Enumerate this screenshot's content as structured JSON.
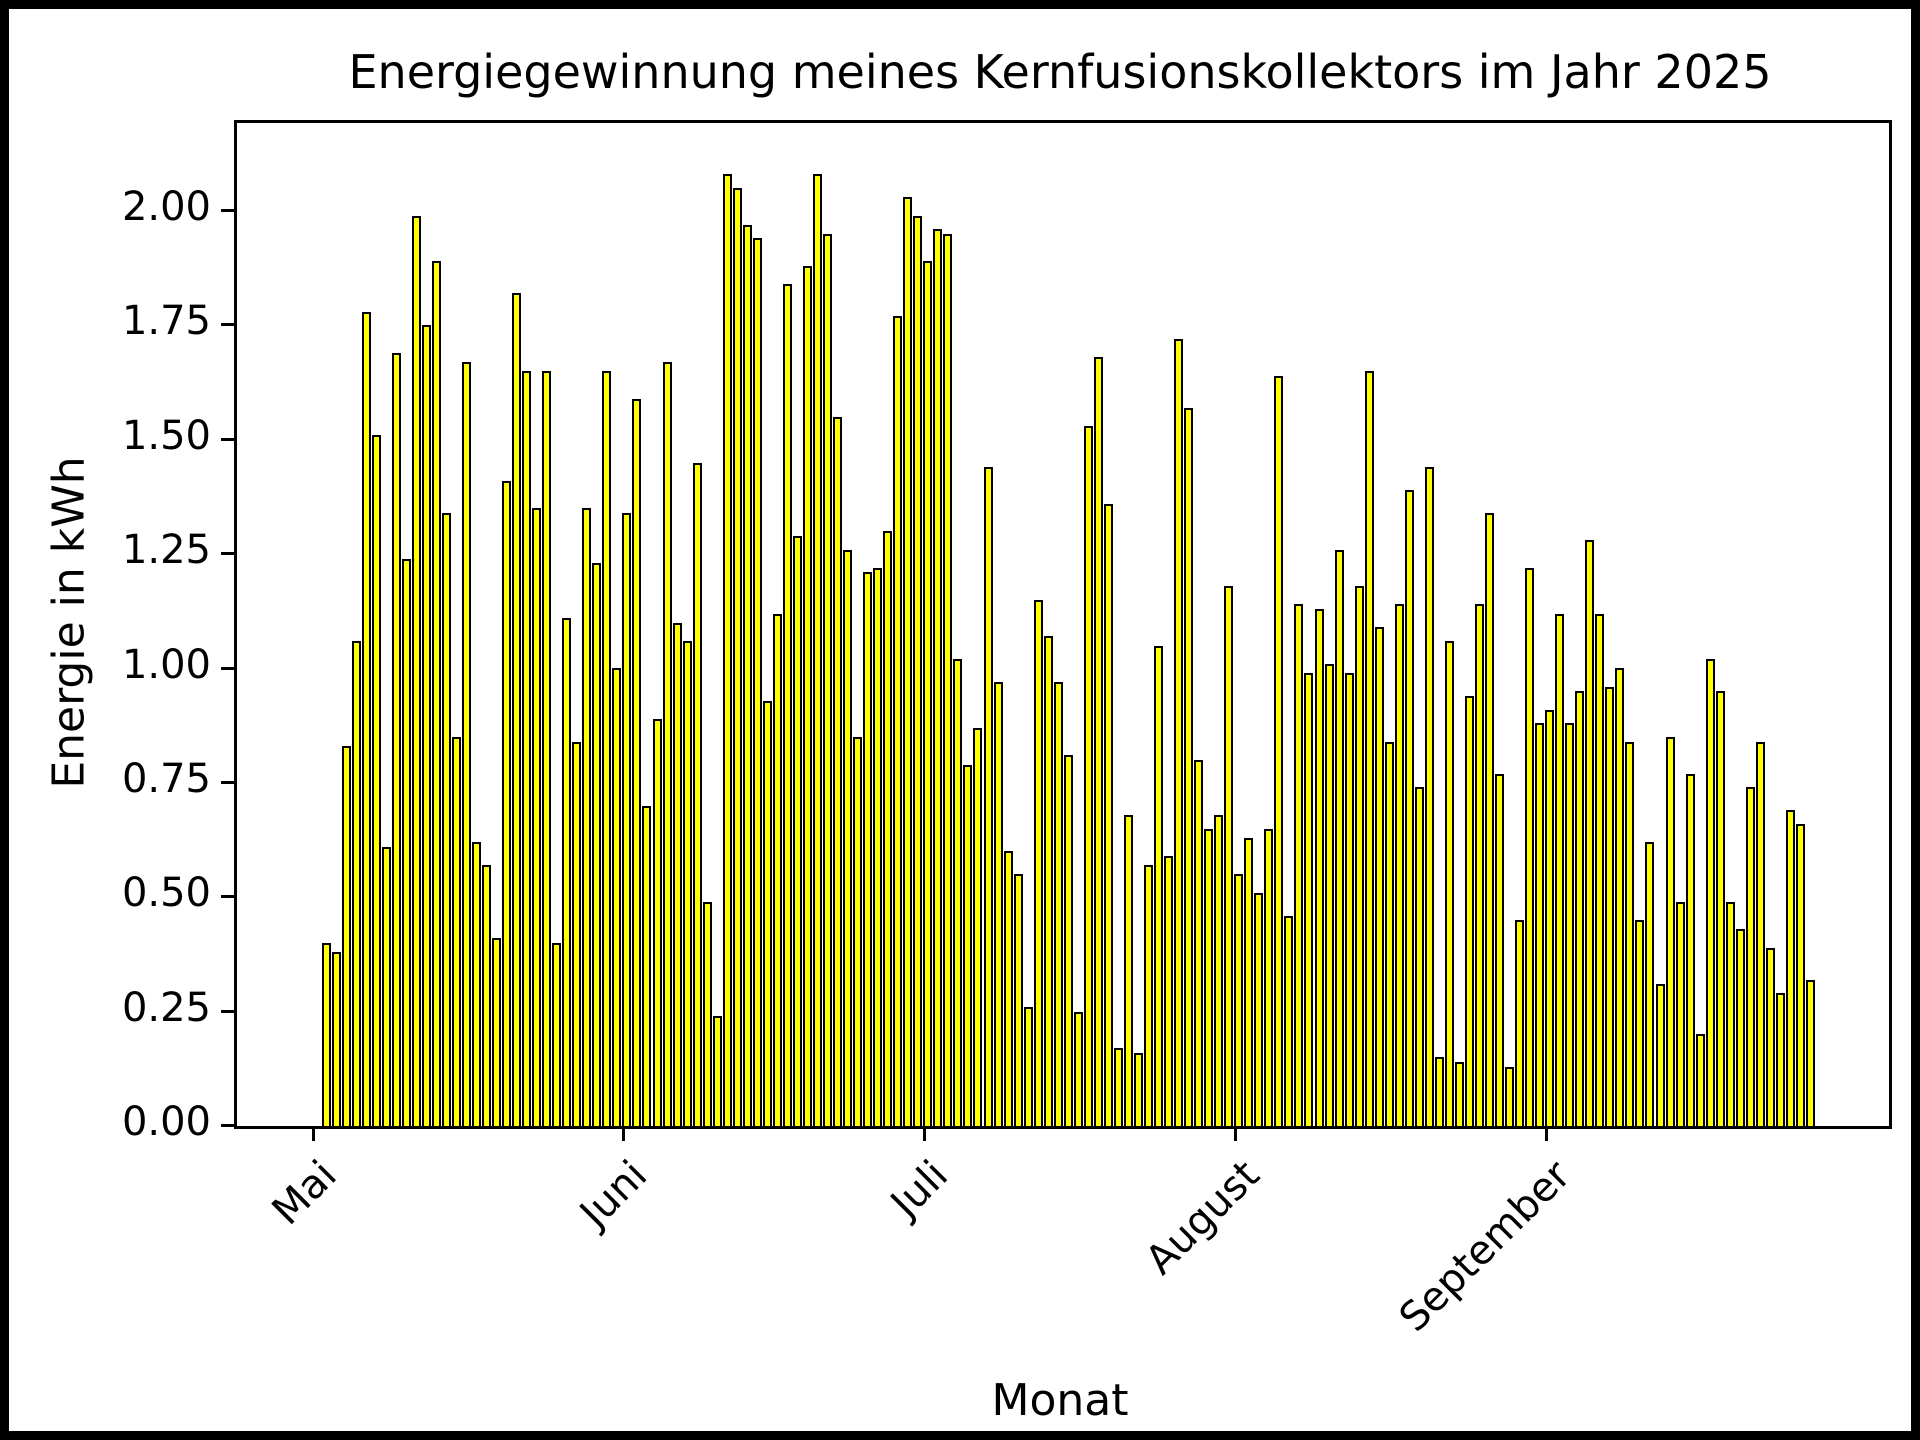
{
  "chart_data": {
    "type": "bar",
    "title": "Energiegewinnung meines Kernfusionskollektors im Jahr 2025",
    "xlabel": "Monat",
    "ylabel": "Energie in kWh",
    "bar_color": "#ffff00",
    "bar_edge_color": "#000000",
    "background_color": "#ffffff",
    "grid": "off",
    "legend": "none",
    "ylim": [
      0,
      2.192
    ],
    "yticks": [
      "0.00",
      "0.25",
      "0.50",
      "0.75",
      "1.00",
      "1.25",
      "1.50",
      "1.75",
      "2.00"
    ],
    "x_unit": "day",
    "x_start_date": "2025-05-02",
    "xticks": [
      {
        "label": "Mai",
        "day": 0
      },
      {
        "label": "Juni",
        "day": 31
      },
      {
        "label": "Juli",
        "day": 61
      },
      {
        "label": "August",
        "day": 92
      },
      {
        "label": "September",
        "day": 123
      }
    ],
    "values": [
      0.4,
      0.38,
      0.83,
      1.06,
      1.78,
      1.51,
      0.61,
      1.69,
      1.24,
      1.99,
      1.75,
      1.89,
      1.34,
      0.85,
      1.67,
      0.62,
      0.57,
      0.41,
      1.41,
      1.82,
      1.65,
      1.35,
      1.65,
      0.4,
      1.11,
      0.84,
      1.35,
      1.23,
      1.65,
      1.0,
      1.34,
      1.59,
      0.7,
      0.89,
      1.67,
      1.1,
      1.06,
      1.45,
      0.49,
      0.24,
      2.08,
      2.05,
      1.97,
      1.94,
      0.93,
      1.12,
      1.84,
      1.29,
      1.88,
      2.08,
      1.95,
      1.55,
      1.26,
      0.85,
      1.21,
      1.22,
      1.3,
      1.77,
      2.03,
      1.99,
      1.89,
      1.96,
      1.95,
      1.02,
      0.79,
      0.87,
      1.44,
      0.97,
      0.6,
      0.55,
      0.26,
      1.15,
      1.07,
      0.97,
      0.81,
      0.25,
      1.53,
      1.68,
      1.36,
      0.17,
      0.68,
      0.16,
      0.57,
      1.05,
      0.59,
      1.72,
      1.57,
      0.8,
      0.65,
      0.68,
      1.18,
      0.55,
      0.63,
      0.51,
      0.65,
      1.64,
      0.46,
      1.14,
      0.99,
      1.13,
      1.01,
      1.26,
      0.99,
      1.18,
      1.65,
      1.09,
      0.84,
      1.14,
      1.39,
      0.74,
      1.44,
      0.15,
      1.06,
      0.14,
      0.94,
      1.14,
      1.34,
      0.77,
      0.13,
      0.45,
      1.22,
      0.88,
      0.91,
      1.12,
      0.88,
      0.95,
      1.28,
      1.12,
      0.96,
      1.0,
      0.84,
      0.45,
      0.62,
      0.31,
      0.85,
      0.49,
      0.77,
      0.2,
      1.02,
      0.95,
      0.49,
      0.43,
      0.74,
      0.84,
      0.39,
      0.29,
      0.69,
      0.66,
      0.32
    ]
  }
}
